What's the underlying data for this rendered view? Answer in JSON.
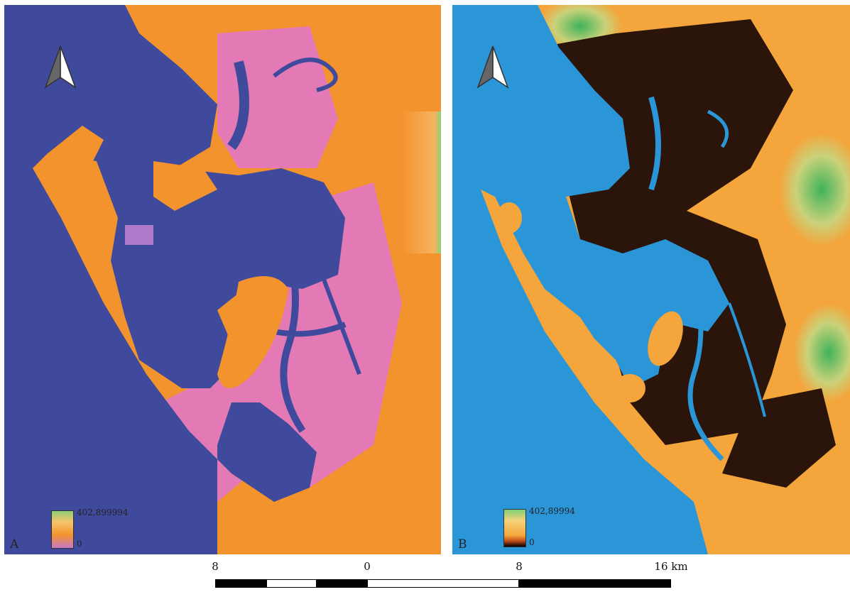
{
  "panel_a": {
    "label": "A",
    "legend": {
      "max": "402,899994",
      "min": "0"
    },
    "colors": {
      "water": "#3f4a9c",
      "land": "#f3932d",
      "marsh": "#e37ab6",
      "high": "#7fcf7a"
    }
  },
  "panel_b": {
    "label": "B",
    "legend": {
      "max": "402,89994",
      "min": "0"
    },
    "colors": {
      "water": "#2a96d8",
      "lowland": "#2b1409",
      "land": "#f4a53c",
      "high": "#3fb35a"
    }
  },
  "north_arrow_icon": "north-arrow-icon",
  "scale": {
    "ticks": [
      "8",
      "0",
      "8",
      "16 km"
    ]
  }
}
